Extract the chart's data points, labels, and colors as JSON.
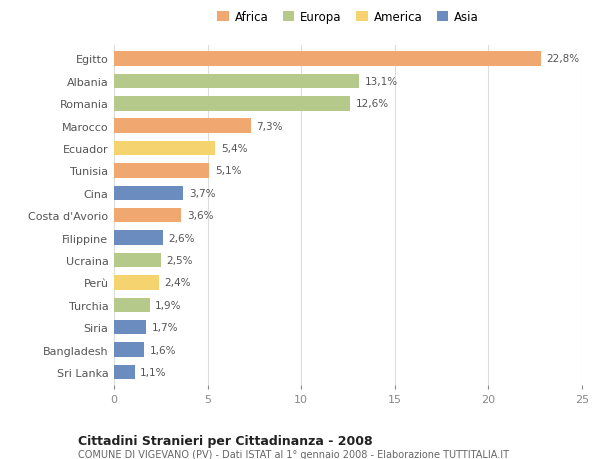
{
  "countries": [
    "Egitto",
    "Albania",
    "Romania",
    "Marocco",
    "Ecuador",
    "Tunisia",
    "Cina",
    "Costa d'Avorio",
    "Filippine",
    "Ucraina",
    "Perù",
    "Turchia",
    "Siria",
    "Bangladesh",
    "Sri Lanka"
  ],
  "values": [
    22.8,
    13.1,
    12.6,
    7.3,
    5.4,
    5.1,
    3.7,
    3.6,
    2.6,
    2.5,
    2.4,
    1.9,
    1.7,
    1.6,
    1.1
  ],
  "labels": [
    "22,8%",
    "13,1%",
    "12,6%",
    "7,3%",
    "5,4%",
    "5,1%",
    "3,7%",
    "3,6%",
    "2,6%",
    "2,5%",
    "2,4%",
    "1,9%",
    "1,7%",
    "1,6%",
    "1,1%"
  ],
  "continents": [
    "Africa",
    "Europa",
    "Europa",
    "Africa",
    "America",
    "Africa",
    "Asia",
    "Africa",
    "Asia",
    "Europa",
    "America",
    "Europa",
    "Asia",
    "Asia",
    "Asia"
  ],
  "colors": {
    "Africa": "#F0A870",
    "Europa": "#B5C98A",
    "America": "#F5D470",
    "Asia": "#6B8CBF"
  },
  "xlim": [
    0,
    25
  ],
  "xticks": [
    0,
    5,
    10,
    15,
    20,
    25
  ],
  "title1": "Cittadini Stranieri per Cittadinanza - 2008",
  "title2": "COMUNE DI VIGEVANO (PV) - Dati ISTAT al 1° gennaio 2008 - Elaborazione TUTTITALIA.IT",
  "bar_height": 0.65,
  "background_color": "#ffffff",
  "grid_color": "#dddddd"
}
